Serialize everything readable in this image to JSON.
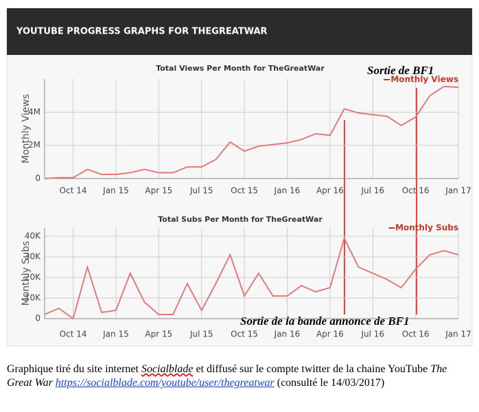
{
  "header": {
    "title": "YOUTUBE PROGRESS GRAPHS FOR THEGREATWAR"
  },
  "annotations": [
    "Sortie de BF1",
    "Sortie de la bande annonce de BF1"
  ],
  "caption": {
    "part1": "Graphique tiré du site internet ",
    "site": "Socialblade",
    "part2": " et diffusé sur le compte twitter de la chaine YouTube ",
    "channel": "The Great War",
    "url": "https://socialblade.com/youtube/user/thegreatwar",
    "part3": " (consulté le 14/03/2017)"
  },
  "chart_data": [
    {
      "type": "line",
      "title": "Total Views Per Month for TheGreatWar",
      "y_label": "Monthly Views",
      "categories": [
        null,
        null,
        "Oct 14",
        null,
        null,
        "Jan 15",
        null,
        null,
        "Apr 15",
        null,
        null,
        "Jul 15",
        null,
        null,
        "Oct 15",
        null,
        null,
        "Jan 16",
        null,
        null,
        "Apr 16",
        null,
        null,
        "Jul 16",
        null,
        null,
        "Oct 16",
        null,
        null,
        "Jan 17"
      ],
      "series": [
        {
          "name": "Monthly Views",
          "color": "#e07b7b",
          "values": [
            0,
            50000,
            50000,
            550000,
            250000,
            250000,
            350000,
            550000,
            350000,
            350000,
            700000,
            700000,
            1150000,
            2200000,
            1650000,
            1950000,
            2050000,
            2150000,
            2350000,
            2700000,
            2600000,
            4200000,
            3950000,
            3850000,
            3750000,
            3200000,
            3700000,
            5000000,
            5550000,
            5500000
          ]
        }
      ],
      "ylim": [
        0,
        6000000
      ],
      "yticks": [
        {
          "value": 0,
          "label": "0"
        },
        {
          "value": 2000000,
          "label": "2M"
        },
        {
          "value": 4000000,
          "label": "4M"
        }
      ],
      "grid": true,
      "legend": "top-right"
    },
    {
      "type": "line",
      "title": "Total Subs Per Month for TheGreatWar",
      "y_label": "Monthly Subs",
      "categories": [
        null,
        null,
        "Oct 14",
        null,
        null,
        "Jan 15",
        null,
        null,
        "Apr 15",
        null,
        null,
        "Jul 15",
        null,
        null,
        "Oct 15",
        null,
        null,
        "Jan 16",
        null,
        null,
        "Apr 16",
        null,
        null,
        "Jul 16",
        null,
        null,
        "Oct 16",
        null,
        null,
        "Jan 17"
      ],
      "series": [
        {
          "name": "Monthly Subs",
          "color": "#e07b7b",
          "values": [
            2000,
            5000,
            0,
            25000,
            3000,
            4000,
            22000,
            8000,
            2000,
            2000,
            17000,
            4000,
            17000,
            31000,
            11000,
            22000,
            11000,
            11000,
            16000,
            13000,
            15000,
            39000,
            25000,
            22000,
            19000,
            15000,
            24000,
            31000,
            33000,
            31000
          ]
        }
      ],
      "ylim": [
        0,
        44000
      ],
      "yticks": [
        0,
        {
          "value": 10000,
          "label": "10K"
        },
        {
          "value": 20000,
          "label": "20K"
        },
        {
          "value": 30000,
          "label": "30K"
        },
        {
          "value": 40000,
          "label": "40K"
        }
      ],
      "grid": true,
      "legend": "top-right"
    }
  ]
}
